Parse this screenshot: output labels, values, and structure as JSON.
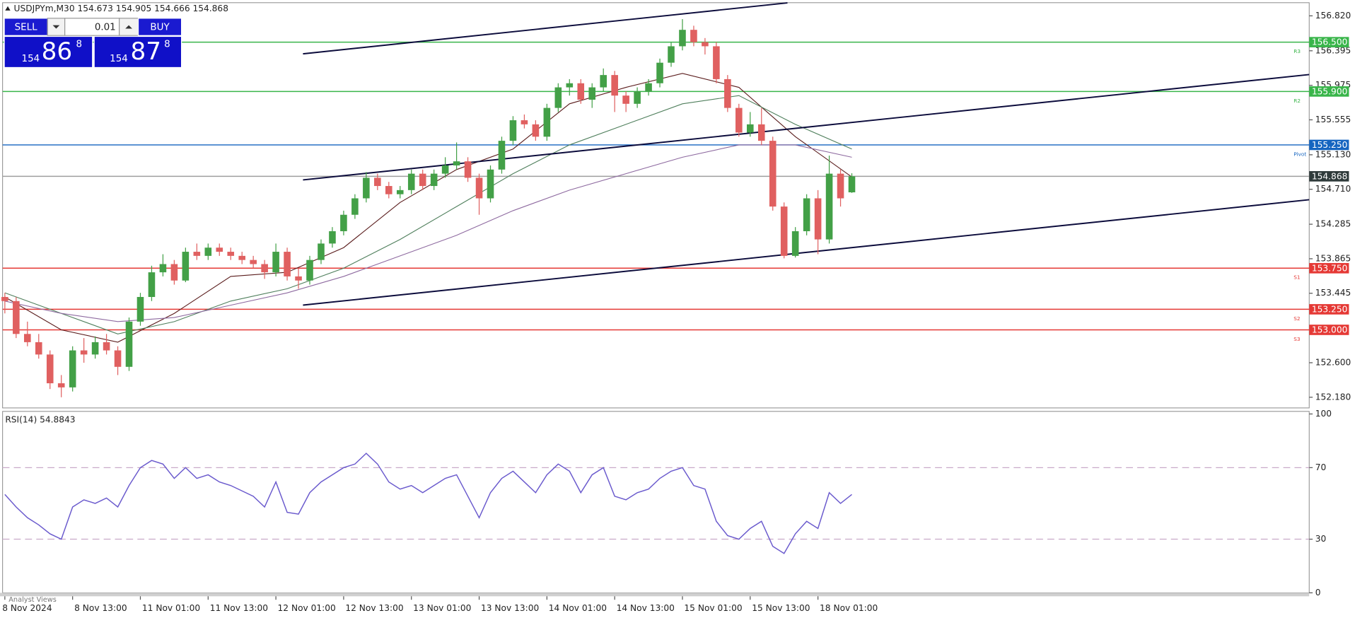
{
  "tab_label": "Analyst Views",
  "trade_panel": {
    "sell": "SELL",
    "buy": "BUY",
    "lot": "0.01",
    "bid_prefix": "154",
    "bid_big": "86",
    "bid_sup": "8",
    "ask_prefix": "154",
    "ask_big": "87",
    "ask_sup": "8"
  },
  "chart_data": [
    {
      "type": "candlestick",
      "title": "USDJPYm,M30  154.673 154.905 154.666 154.868",
      "up_color": "#43a047",
      "down_color": "#e06060",
      "xlim": [
        -0.2,
        115.5
      ],
      "ylim": [
        152.05,
        156.98
      ],
      "yticks": [
        {
          "value": 156.82,
          "label": "156.820"
        },
        156.395,
        155.975,
        155.555,
        {
          "value": 155.13,
          "label": "155.130"
        },
        {
          "value": 154.71,
          "label": "154.710"
        },
        154.285,
        153.865,
        153.445,
        {
          "value": 152.6,
          "label": "152.600"
        },
        {
          "value": 152.18,
          "label": "152.180"
        }
      ],
      "xticks": [
        {
          "value": 0,
          "label": "8 Nov 2024"
        },
        {
          "value": 6,
          "label": "8 Nov 13:00"
        },
        {
          "value": 12,
          "label": "11 Nov 01:00"
        },
        {
          "value": 18,
          "label": "11 Nov 13:00"
        },
        {
          "value": 24,
          "label": "12 Nov 01:00"
        },
        {
          "value": 30,
          "label": "12 Nov 13:00"
        },
        {
          "value": 36,
          "label": "13 Nov 01:00"
        },
        {
          "value": 42,
          "label": "13 Nov 13:00"
        },
        {
          "value": 48,
          "label": "14 Nov 01:00"
        },
        {
          "value": 54,
          "label": "14 Nov 13:00"
        },
        {
          "value": 60,
          "label": "15 Nov 01:00"
        },
        {
          "value": 66,
          "label": "15 Nov 13:00"
        },
        {
          "value": 72,
          "label": "18 Nov 01:00"
        }
      ],
      "open": [
        153.4,
        153.35,
        152.95,
        152.85,
        152.7,
        152.35,
        152.3,
        152.75,
        152.7,
        152.85,
        152.75,
        152.55,
        153.1,
        153.4,
        153.7,
        153.8,
        153.6,
        153.95,
        153.9,
        154.0,
        153.95,
        153.9,
        153.85,
        153.8,
        153.7,
        153.95,
        153.65,
        153.6,
        153.85,
        154.05,
        154.2,
        154.4,
        154.6,
        154.85,
        154.75,
        154.65,
        154.7,
        154.9,
        154.75,
        154.9,
        155.0,
        155.05,
        154.85,
        154.6,
        154.95,
        155.3,
        155.55,
        155.5,
        155.35,
        155.7,
        155.95,
        156.0,
        155.8,
        155.95,
        156.1,
        155.85,
        155.75,
        155.9,
        156.0,
        156.25,
        156.45,
        156.65,
        156.5,
        156.45,
        156.05,
        155.7,
        155.4,
        155.5,
        155.3,
        154.5,
        153.9,
        154.2,
        154.6,
        154.1,
        154.9,
        154.673
      ],
      "high": [
        153.45,
        153.4,
        153.1,
        152.95,
        152.75,
        152.45,
        152.8,
        152.9,
        152.92,
        152.95,
        152.8,
        153.15,
        153.45,
        153.78,
        153.92,
        153.85,
        154.0,
        154.05,
        154.05,
        154.05,
        154.0,
        153.95,
        153.9,
        153.85,
        154.05,
        154.0,
        153.75,
        153.9,
        154.1,
        154.25,
        154.45,
        154.65,
        154.92,
        154.9,
        154.8,
        154.75,
        154.95,
        154.95,
        154.95,
        155.1,
        155.28,
        155.1,
        154.9,
        155.0,
        155.35,
        155.6,
        155.62,
        155.55,
        155.75,
        156.0,
        156.05,
        156.05,
        156.0,
        156.18,
        156.15,
        155.9,
        155.95,
        156.05,
        156.3,
        156.5,
        156.78,
        156.7,
        156.55,
        156.5,
        156.1,
        155.75,
        155.65,
        155.7,
        155.35,
        154.55,
        154.25,
        154.65,
        154.7,
        155.12,
        154.95,
        154.905
      ],
      "low": [
        153.2,
        152.9,
        152.8,
        152.65,
        152.28,
        152.18,
        152.25,
        152.6,
        152.65,
        152.7,
        152.45,
        152.5,
        153.05,
        153.35,
        153.65,
        153.55,
        153.58,
        153.85,
        153.85,
        153.9,
        153.85,
        153.8,
        153.75,
        153.62,
        153.65,
        153.6,
        153.5,
        153.55,
        153.8,
        154.0,
        154.15,
        154.35,
        154.55,
        154.7,
        154.6,
        154.6,
        154.65,
        154.7,
        154.7,
        154.85,
        154.95,
        154.8,
        154.4,
        154.55,
        154.9,
        155.25,
        155.45,
        155.3,
        155.3,
        155.65,
        155.85,
        155.75,
        155.7,
        155.9,
        155.65,
        155.65,
        155.7,
        155.85,
        155.95,
        156.2,
        156.4,
        156.45,
        156.35,
        156.0,
        155.65,
        155.35,
        155.35,
        155.25,
        154.45,
        153.87,
        153.88,
        154.15,
        153.92,
        154.05,
        154.5,
        154.666
      ],
      "close": [
        153.35,
        152.95,
        152.85,
        152.7,
        152.35,
        152.3,
        152.75,
        152.7,
        152.85,
        152.75,
        152.55,
        153.1,
        153.4,
        153.7,
        153.8,
        153.6,
        153.95,
        153.9,
        154.0,
        153.95,
        153.9,
        153.85,
        153.8,
        153.7,
        153.95,
        153.65,
        153.6,
        153.85,
        154.05,
        154.2,
        154.4,
        154.6,
        154.85,
        154.75,
        154.65,
        154.7,
        154.9,
        154.75,
        154.9,
        155.0,
        155.05,
        154.85,
        154.6,
        154.95,
        155.3,
        155.55,
        155.5,
        155.35,
        155.7,
        155.95,
        156.0,
        155.8,
        155.95,
        156.1,
        155.85,
        155.75,
        155.9,
        156.0,
        156.25,
        156.45,
        156.65,
        156.5,
        156.45,
        156.05,
        155.7,
        155.4,
        155.5,
        155.3,
        154.5,
        153.9,
        154.2,
        154.6,
        154.1,
        154.9,
        154.6,
        154.868
      ],
      "series": [
        {
          "color": "#5a1c1c",
          "x": [
            0,
            5,
            10,
            15,
            20,
            25,
            30,
            35,
            40,
            45,
            50,
            55,
            60,
            65,
            70,
            75
          ],
          "values": [
            153.4,
            153.0,
            152.85,
            153.2,
            153.65,
            153.7,
            154.0,
            154.55,
            154.95,
            155.2,
            155.75,
            155.95,
            156.12,
            155.95,
            155.35,
            154.86
          ]
        },
        {
          "color": "#4f7f5c",
          "x": [
            0,
            5,
            10,
            15,
            20,
            25,
            30,
            35,
            40,
            45,
            50,
            55,
            60,
            65,
            70,
            75
          ],
          "values": [
            153.45,
            153.2,
            152.95,
            153.1,
            153.35,
            153.5,
            153.75,
            154.1,
            154.5,
            154.9,
            155.25,
            155.5,
            155.75,
            155.85,
            155.5,
            155.2
          ]
        },
        {
          "color": "#8e6aa0",
          "x": [
            0,
            5,
            10,
            15,
            20,
            25,
            30,
            35,
            40,
            45,
            50,
            55,
            60,
            65,
            70,
            75
          ],
          "values": [
            153.35,
            153.2,
            153.1,
            153.15,
            153.3,
            153.45,
            153.65,
            153.9,
            154.15,
            154.45,
            154.7,
            154.9,
            155.1,
            155.25,
            155.25,
            155.1
          ]
        }
      ],
      "trendlines": [
        {
          "color": "#0b0b3b",
          "x": [
            26.4,
            69.3
          ],
          "values": [
            156.358,
            156.978
          ]
        },
        {
          "color": "#0b0b3b",
          "x": [
            26.4,
            115.5
          ],
          "values": [
            154.824,
            156.106
          ]
        },
        {
          "color": "#0b0b3b",
          "x": [
            26.4,
            115.5
          ],
          "values": [
            153.301,
            154.583
          ]
        }
      ],
      "levels": [
        {
          "name": "R3",
          "value": {
            "value": 156.5,
            "label": "156.500"
          },
          "color": "#39b54a"
        },
        {
          "name": "R2",
          "value": {
            "value": 155.9,
            "label": "155.900"
          },
          "color": "#39b54a"
        },
        {
          "name": "Pivot",
          "value": {
            "value": 155.25,
            "label": "155.250"
          },
          "color": "#1565c0"
        },
        {
          "value": 154.868,
          "color": "#9e9e9e",
          "label_color": "#2f3b3b"
        },
        {
          "name": "S1",
          "value": {
            "value": 153.75,
            "label": "153.750"
          },
          "color": "#e53935"
        },
        {
          "name": "S2",
          "value": {
            "value": 153.25,
            "label": "153.250"
          },
          "color": "#e53935"
        },
        {
          "name": "S3",
          "value": {
            "value": 153.0,
            "label": "153.000"
          },
          "color": "#e53935"
        }
      ]
    },
    {
      "type": "line",
      "title": "RSI(14) 54.8843",
      "color": "#6a5acd",
      "ylim": [
        0,
        100
      ],
      "yticks": [
        0,
        30,
        70,
        100
      ],
      "levels": [
        30,
        70
      ],
      "values": [
        55,
        48,
        42,
        38,
        33,
        30,
        48,
        52,
        50,
        53,
        48,
        60,
        70,
        74,
        72,
        64,
        70,
        64,
        66,
        62,
        60,
        57,
        54,
        48,
        62,
        45,
        44,
        56,
        62,
        66,
        70,
        72,
        78,
        72,
        62,
        58,
        60,
        56,
        60,
        64,
        66,
        54,
        42,
        56,
        64,
        68,
        62,
        56,
        66,
        72,
        68,
        56,
        66,
        70,
        54,
        52,
        56,
        58,
        64,
        68,
        70,
        60,
        58,
        40,
        32,
        30,
        36,
        40,
        26,
        22,
        33,
        40,
        36,
        56,
        50,
        55
      ]
    }
  ]
}
